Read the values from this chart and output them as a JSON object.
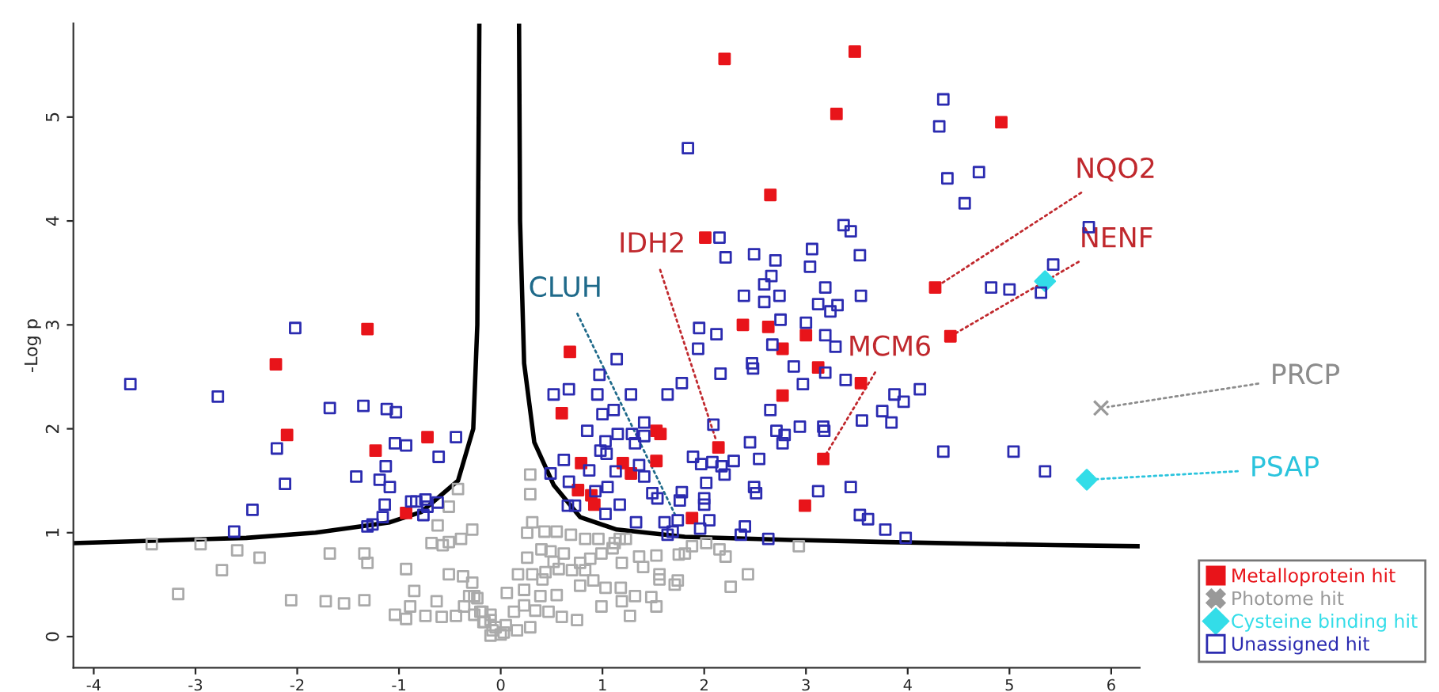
{
  "chart_data": {
    "type": "scatter",
    "ylabel": "-Log p",
    "xlim": [
      -4.2,
      6.28
    ],
    "ylim": [
      -0.3,
      5.9
    ],
    "xticks": [
      -4,
      -3,
      -2,
      -1,
      0,
      1,
      2,
      3,
      4,
      5,
      6
    ],
    "yticks": [
      0,
      1,
      2,
      3,
      4,
      5
    ],
    "grid": false,
    "legend": "bottom right",
    "series": [
      {
        "type": "line",
        "color": "#000000",
        "marker": "none",
        "line_style": "solid",
        "x": [
          -4.2,
          -2.5,
          -1.82,
          -1.09,
          -0.78,
          -0.42,
          -0.27,
          -0.23,
          -0.21
        ],
        "values": [
          0.9,
          0.95,
          1.0,
          1.1,
          1.2,
          1.5,
          2.0,
          3.0,
          5.9
        ]
      },
      {
        "type": "line",
        "color": "#000000",
        "marker": "none",
        "line_style": "solid",
        "x": [
          0.18,
          0.19,
          0.23,
          0.33,
          0.52,
          0.78,
          1.14,
          1.81,
          2.86,
          3.79,
          5.45,
          6.28
        ],
        "values": [
          5.9,
          4.0,
          2.63,
          1.87,
          1.46,
          1.15,
          1.03,
          0.96,
          0.93,
          0.91,
          0.88,
          0.87
        ]
      },
      {
        "color": "#aaaaaa",
        "marker": "square",
        "x": [
          -3.43,
          -2.95,
          -2.59,
          -2.37,
          -2.74,
          -3.17,
          -2.06,
          -1.72,
          -1.54,
          -1.34,
          -1.68,
          -1.34,
          -1.31,
          -0.93,
          -0.85,
          -0.89,
          -1.04,
          -0.93,
          -0.74,
          -0.63,
          -0.58,
          -0.51,
          -0.37,
          -0.28,
          -0.62,
          -0.68,
          -0.57,
          -0.51,
          -0.39,
          -0.28,
          -0.51,
          -0.42,
          -0.44,
          -0.36,
          -0.31,
          -0.23,
          -0.26,
          -0.18,
          -0.1,
          -0.17,
          -0.05,
          -0.1,
          0.0,
          0.29,
          0.29,
          0.31,
          0.26,
          0.43,
          0.55,
          0.69,
          0.83,
          0.96,
          1.12,
          0.4,
          0.49,
          0.62,
          0.99,
          1.1,
          1.17,
          1.23,
          0.26,
          0.52,
          0.78,
          0.88,
          1.36,
          1.53,
          1.75,
          1.81,
          1.88,
          2.02,
          2.15,
          2.21,
          0.17,
          0.31,
          0.44,
          0.57,
          0.7,
          0.83,
          1.19,
          1.4,
          1.56,
          1.56,
          1.74,
          2.43,
          2.26,
          2.93,
          0.06,
          0.23,
          0.41,
          0.39,
          0.55,
          0.78,
          0.91,
          1.03,
          1.18,
          1.32,
          1.48,
          1.71,
          0.13,
          0.23,
          0.34,
          0.47,
          0.6,
          0.75,
          0.99,
          1.19,
          1.27,
          1.53,
          -0.2,
          -0.1,
          -0.08,
          0.03,
          0.16,
          0.29,
          -0.16,
          0.05,
          -0.26
        ],
        "values": [
          0.89,
          0.89,
          0.83,
          0.76,
          0.64,
          0.41,
          0.35,
          0.34,
          0.32,
          0.35,
          0.8,
          0.8,
          0.71,
          0.65,
          0.44,
          0.29,
          0.21,
          0.17,
          0.2,
          0.34,
          0.19,
          0.6,
          0.58,
          0.52,
          1.07,
          0.9,
          0.88,
          0.91,
          0.94,
          1.03,
          1.25,
          1.42,
          0.2,
          0.29,
          0.39,
          0.37,
          0.21,
          0.24,
          0.16,
          0.14,
          0.09,
          0.01,
          0.02,
          1.56,
          1.37,
          1.1,
          1.0,
          1.01,
          1.01,
          0.98,
          0.94,
          0.94,
          0.9,
          0.84,
          0.82,
          0.8,
          0.8,
          0.85,
          0.94,
          0.94,
          0.76,
          0.72,
          0.71,
          0.75,
          0.77,
          0.78,
          0.79,
          0.8,
          0.87,
          0.9,
          0.84,
          0.77,
          0.6,
          0.6,
          0.62,
          0.65,
          0.64,
          0.64,
          0.71,
          0.67,
          0.6,
          0.55,
          0.54,
          0.6,
          0.48,
          0.87,
          0.42,
          0.45,
          0.55,
          0.39,
          0.4,
          0.49,
          0.54,
          0.47,
          0.47,
          0.39,
          0.38,
          0.5,
          0.24,
          0.3,
          0.25,
          0.24,
          0.19,
          0.16,
          0.29,
          0.34,
          0.2,
          0.29,
          0.24,
          0.21,
          0.06,
          0.04,
          0.06,
          0.09,
          0.14,
          0.11,
          0.39
        ]
      },
      {
        "name": "Metalloprotein hit",
        "color": "#e8141a",
        "marker": "square",
        "x": [
          2.2,
          3.48,
          3.3,
          2.65,
          2.01,
          4.92,
          4.27,
          4.42,
          3.54,
          -1.31,
          -2.21,
          -2.1,
          -0.72,
          -1.23,
          -0.93,
          0.68,
          2.38,
          2.63,
          3.0,
          2.77,
          3.12,
          2.77,
          0.6,
          1.53,
          1.57,
          2.14,
          3.17,
          0.79,
          1.2,
          1.53,
          1.28,
          0.76,
          0.89,
          0.92,
          1.88,
          2.99
        ],
        "values": [
          5.56,
          5.63,
          5.03,
          4.25,
          3.84,
          4.95,
          3.36,
          2.89,
          2.44,
          2.96,
          2.62,
          1.94,
          1.92,
          1.79,
          1.19,
          2.74,
          3.0,
          2.98,
          2.9,
          2.77,
          2.59,
          2.32,
          2.15,
          1.98,
          1.95,
          1.82,
          1.71,
          1.67,
          1.67,
          1.69,
          1.57,
          1.41,
          1.36,
          1.27,
          1.14,
          1.26
        ]
      },
      {
        "name": "Photome hit",
        "color": "#999999",
        "marker": "cross",
        "x": [
          5.9
        ],
        "values": [
          2.2
        ]
      },
      {
        "name": "Cysteine binding hit",
        "color": "#33dde8",
        "marker": "diamond",
        "x": [
          5.35,
          5.76
        ],
        "values": [
          3.42,
          1.51
        ]
      },
      {
        "name": "Unassigned hit",
        "color": "#2b2bb0",
        "marker": "square",
        "x": [
          -3.64,
          -2.78,
          -2.02,
          -1.68,
          -1.35,
          -1.12,
          -1.03,
          -2.2,
          -1.04,
          -0.93,
          -0.44,
          -0.61,
          -1.13,
          -2.12,
          -1.42,
          -1.19,
          -1.09,
          -2.44,
          -1.14,
          -0.88,
          -0.83,
          -0.74,
          -0.72,
          -0.62,
          -0.76,
          -1.16,
          -2.62,
          -1.31,
          -1.26,
          1.84,
          2.15,
          2.21,
          2.49,
          2.7,
          3.06,
          3.04,
          3.37,
          3.44,
          3.53,
          2.66,
          2.59,
          2.39,
          2.59,
          2.74,
          3.19,
          3.12,
          3.31,
          3.24,
          3.54,
          2.75,
          3.0,
          3.19,
          3.29,
          2.67,
          1.95,
          2.12,
          1.94,
          1.14,
          0.97,
          2.47,
          2.48,
          2.88,
          2.16,
          3.19,
          3.39,
          2.97,
          0.52,
          0.67,
          0.95,
          1.28,
          1.64,
          1.78,
          1.11,
          1.0,
          0.85,
          1.15,
          1.29,
          1.41,
          1.41,
          1.32,
          1.03,
          0.98,
          1.04,
          0.62,
          0.87,
          0.49,
          1.13,
          1.36,
          1.41,
          0.67,
          1.05,
          0.93,
          0.73,
          0.66,
          1.17,
          1.03,
          1.33,
          1.49,
          1.54,
          1.78,
          1.76,
          1.61,
          1.74,
          1.69,
          1.64,
          2.09,
          1.89,
          1.97,
          2.08,
          2.17,
          2.2,
          2.29,
          2.54,
          2.45,
          2.02,
          2.0,
          2.0,
          2.49,
          2.51,
          2.05,
          1.96,
          2.4,
          2.36,
          2.63,
          3.12,
          3.44,
          2.65,
          2.79,
          2.77,
          2.71,
          2.94,
          3.17,
          3.18,
          3.55,
          3.75,
          3.53,
          3.61,
          4.35,
          4.31,
          4.39,
          4.7,
          4.56,
          5.78,
          4.82,
          5.0,
          5.31,
          5.43,
          4.12,
          3.87,
          3.96,
          3.84,
          4.35,
          5.04,
          5.35,
          3.78,
          3.98
        ],
        "values": [
          2.43,
          2.31,
          2.97,
          2.2,
          2.22,
          2.19,
          2.16,
          1.81,
          1.86,
          1.84,
          1.92,
          1.73,
          1.64,
          1.47,
          1.54,
          1.51,
          1.44,
          1.22,
          1.27,
          1.3,
          1.3,
          1.32,
          1.25,
          1.29,
          1.17,
          1.15,
          1.01,
          1.06,
          1.08,
          4.7,
          3.84,
          3.65,
          3.68,
          3.62,
          3.73,
          3.56,
          3.96,
          3.9,
          3.67,
          3.47,
          3.39,
          3.28,
          3.22,
          3.28,
          3.36,
          3.2,
          3.19,
          3.13,
          3.28,
          3.05,
          3.02,
          2.9,
          2.79,
          2.81,
          2.97,
          2.91,
          2.77,
          2.67,
          2.52,
          2.63,
          2.58,
          2.6,
          2.53,
          2.54,
          2.47,
          2.43,
          2.33,
          2.38,
          2.33,
          2.33,
          2.33,
          2.44,
          2.18,
          2.14,
          1.98,
          1.95,
          1.95,
          2.06,
          1.93,
          1.86,
          1.88,
          1.79,
          1.76,
          1.7,
          1.6,
          1.57,
          1.59,
          1.65,
          1.54,
          1.49,
          1.44,
          1.4,
          1.26,
          1.26,
          1.27,
          1.18,
          1.1,
          1.38,
          1.33,
          1.39,
          1.31,
          1.1,
          1.12,
          1.01,
          0.98,
          2.04,
          1.73,
          1.66,
          1.68,
          1.64,
          1.56,
          1.69,
          1.71,
          1.87,
          1.48,
          1.33,
          1.27,
          1.44,
          1.38,
          1.12,
          1.04,
          1.06,
          0.98,
          0.94,
          1.4,
          1.44,
          2.18,
          1.94,
          1.86,
          1.98,
          2.02,
          2.02,
          1.98,
          2.08,
          2.17,
          1.17,
          1.13,
          5.17,
          4.91,
          4.41,
          4.47,
          4.17,
          3.94,
          3.36,
          3.34,
          3.31,
          3.58,
          2.38,
          2.33,
          2.26,
          2.06,
          1.78,
          1.78,
          1.59,
          1.03,
          0.95
        ]
      }
    ],
    "annotations": [
      {
        "text": "NQO2",
        "x": 4.27,
        "y": 3.36
      },
      {
        "text": "NENF",
        "x": 4.42,
        "y": 2.89
      },
      {
        "text": "MCM6",
        "x": 3.17,
        "y": 1.71
      },
      {
        "text": "IDH2",
        "x": 2.14,
        "y": 1.82
      },
      {
        "text": "CLUH",
        "x": 1.74,
        "y": 1.12
      },
      {
        "text": "PRCP",
        "x": 5.9,
        "y": 2.2
      },
      {
        "text": "PSAP",
        "x": 5.76,
        "y": 1.51
      }
    ]
  }
}
